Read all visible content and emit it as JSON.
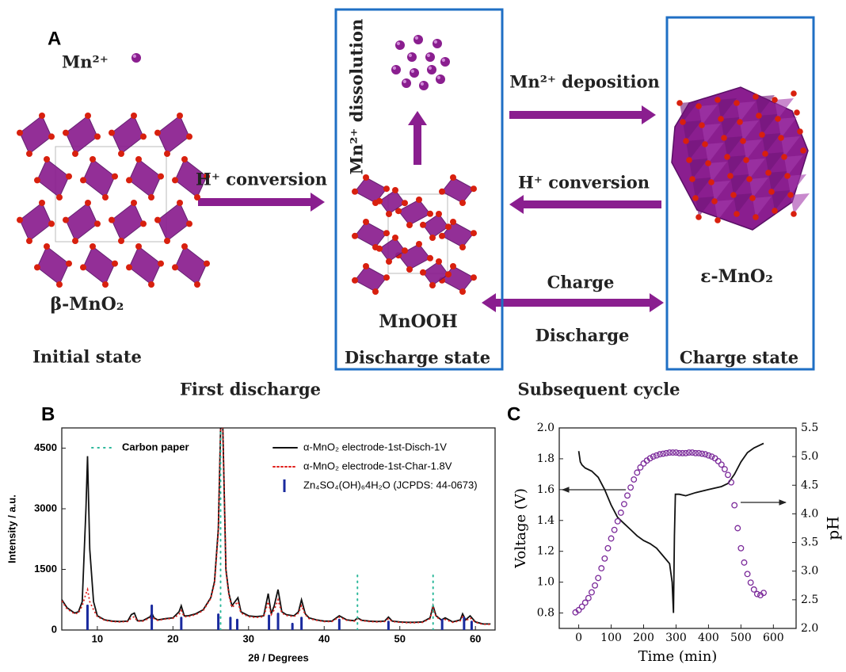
{
  "diagram": {
    "panel_label": "A",
    "ion_label": "Mn²⁺",
    "h_conversion_1": "H⁺ conversion",
    "dissolution": "Mn²⁺ dissolution",
    "deposition": "Mn²⁺ deposition",
    "h_conversion_2": "H⁺ conversion",
    "charge": "Charge",
    "discharge": "Discharge",
    "beta": "β-MnO₂",
    "mnooh": "MnOOH",
    "epsilon": "ε-MnO₂",
    "initial_state": "Initial state",
    "discharge_state": "Discharge state",
    "charge_state": "Charge state",
    "first_discharge": "First discharge",
    "subsequent_cycle": "Subsequent cycle"
  },
  "chart_data": [
    {
      "type": "line",
      "label": "B",
      "xlabel": "2θ / Degrees",
      "ylabel": "Intensity / a.u.",
      "xlim": [
        5.3,
        62.6
      ],
      "xticks": [
        10,
        20,
        30,
        40,
        50,
        60
      ],
      "ylim": [
        0,
        5000
      ],
      "yticks": [
        0,
        1500,
        3000,
        4500
      ],
      "legend": "upper right",
      "x": [
        5.3,
        6,
        7,
        7.5,
        8,
        8.5,
        8.7,
        9,
        9.5,
        10,
        11,
        12,
        13,
        14,
        14.5,
        14.9,
        15.3,
        16,
        17,
        17.2,
        17.5,
        18,
        19,
        20,
        20.8,
        21.1,
        21.5,
        22,
        23,
        24,
        25,
        25.5,
        26,
        26.3,
        26.6,
        27,
        27.4,
        27.8,
        28.2,
        28.6,
        29,
        30,
        31,
        32,
        32.6,
        33,
        33.4,
        33.9,
        34.4,
        35,
        36,
        36.6,
        37,
        37.5,
        38,
        39,
        40,
        41,
        42,
        43,
        44,
        44.4,
        45,
        46,
        47,
        48,
        48.5,
        49,
        50,
        51,
        52,
        53,
        54,
        54.4,
        54.8,
        55.5,
        56,
        57,
        58,
        58.3,
        58.7,
        59,
        59.3,
        60,
        61,
        62
      ],
      "series": [
        {
          "name": "α-MnO₂ electrode-1st-Disch-1V",
          "color": "#111111",
          "linestyle": "solid",
          "values": [
            750,
            550,
            420,
            450,
            700,
            3000,
            4300,
            2000,
            700,
            350,
            250,
            220,
            210,
            220,
            380,
            420,
            230,
            230,
            330,
            420,
            300,
            250,
            280,
            300,
            450,
            600,
            350,
            350,
            400,
            500,
            800,
            1200,
            2500,
            5000,
            5000,
            1500,
            900,
            600,
            700,
            800,
            450,
            350,
            330,
            350,
            900,
            400,
            600,
            1000,
            450,
            380,
            350,
            450,
            750,
            400,
            300,
            250,
            220,
            220,
            350,
            250,
            230,
            300,
            240,
            220,
            210,
            220,
            320,
            220,
            200,
            190,
            190,
            200,
            300,
            600,
            350,
            250,
            300,
            200,
            250,
            400,
            250,
            300,
            350,
            200,
            150,
            150
          ]
        },
        {
          "name": "α-MnO₂ electrode-1st-Char-1.8V",
          "color": "#e0201c",
          "linestyle": "dotted",
          "values": [
            720,
            520,
            400,
            420,
            600,
            900,
            1000,
            700,
            500,
            330,
            240,
            210,
            200,
            210,
            300,
            330,
            220,
            220,
            300,
            380,
            280,
            240,
            270,
            290,
            380,
            480,
            330,
            330,
            380,
            480,
            780,
            1150,
            2400,
            5000,
            5000,
            1450,
            850,
            560,
            620,
            700,
            420,
            330,
            310,
            330,
            700,
            380,
            500,
            750,
            420,
            360,
            330,
            420,
            600,
            380,
            280,
            240,
            210,
            210,
            320,
            240,
            220,
            280,
            230,
            210,
            200,
            210,
            280,
            210,
            190,
            180,
            180,
            190,
            280,
            550,
            330,
            240,
            260,
            190,
            230,
            330,
            230,
            260,
            300,
            190,
            140,
            140
          ]
        },
        {
          "name": "Zn₄SO₄(OH)₆4H₂O (JCPDS: 44-0673)",
          "color": "#1a2a9e",
          "linestyle": "stem",
          "x": [
            8.7,
            17.2,
            21.1,
            26,
            27.6,
            28.5,
            32.7,
            33.9,
            35.8,
            37,
            42,
            48.5,
            55.6,
            58.5,
            59.5
          ],
          "values": [
            600,
            600,
            300,
            380,
            300,
            250,
            350,
            400,
            150,
            300,
            250,
            200,
            250,
            300,
            200
          ]
        },
        {
          "name": "Carbon paper",
          "color": "#2bb89a",
          "linestyle": "vline",
          "legend": "upper left",
          "x": [
            26.3,
            44.4,
            54.4
          ],
          "values": [
            5000,
            1450,
            1450
          ]
        }
      ]
    },
    {
      "type": "line",
      "label": "C",
      "xlabel": "Time (min)",
      "ylabel": "Voltage (V)",
      "y2label": "pH",
      "xlim": [
        -60,
        670
      ],
      "xticks": [
        0,
        100,
        200,
        300,
        400,
        500,
        600
      ],
      "ylim": [
        0.7,
        2.0
      ],
      "yticks": [
        0.8,
        {
          "value": 1,
          "label": "1.0"
        },
        1.2,
        1.4,
        1.6,
        1.8,
        {
          "value": 2,
          "label": "2.0"
        }
      ],
      "y2lim": [
        2.0,
        5.5
      ],
      "y2ticks": [
        {
          "value": 2,
          "label": "2.0"
        },
        2.5,
        {
          "value": 3,
          "label": "3.0"
        },
        3.5,
        {
          "value": 4,
          "label": "4.0"
        },
        4.5,
        {
          "value": 5,
          "label": "5.0"
        },
        5.5
      ],
      "series": [
        {
          "color": "#111111",
          "linestyle": "solid",
          "x": [
            0,
            5,
            10,
            20,
            40,
            60,
            80,
            100,
            120,
            140,
            160,
            180,
            200,
            220,
            240,
            260,
            280,
            288,
            292,
            295,
            298,
            310,
            330,
            360,
            400,
            440,
            460,
            480,
            500,
            520,
            540,
            560,
            570
          ],
          "values": [
            1.85,
            1.78,
            1.76,
            1.74,
            1.72,
            1.68,
            1.6,
            1.5,
            1.42,
            1.38,
            1.34,
            1.3,
            1.27,
            1.25,
            1.22,
            1.17,
            1.12,
            1.0,
            0.8,
            1.3,
            1.57,
            1.57,
            1.56,
            1.58,
            1.6,
            1.62,
            1.64,
            1.7,
            1.78,
            1.84,
            1.87,
            1.89,
            1.9
          ]
        },
        {
          "color": "#7b2a9a",
          "linestyle": "marker",
          "axis": "y2",
          "x": [
            -10,
            0,
            10,
            20,
            30,
            40,
            50,
            60,
            70,
            80,
            90,
            100,
            110,
            120,
            130,
            140,
            150,
            160,
            170,
            180,
            190,
            200,
            210,
            220,
            230,
            240,
            250,
            260,
            270,
            280,
            290,
            300,
            310,
            320,
            330,
            340,
            350,
            360,
            370,
            380,
            390,
            400,
            410,
            420,
            430,
            440,
            450,
            460,
            470,
            480,
            490,
            500,
            510,
            520,
            530,
            540,
            550,
            560,
            570
          ],
          "values": [
            2.28,
            2.32,
            2.38,
            2.45,
            2.53,
            2.63,
            2.75,
            2.88,
            3.05,
            3.22,
            3.4,
            3.57,
            3.72,
            3.87,
            4.02,
            4.17,
            4.32,
            4.46,
            4.6,
            4.72,
            4.81,
            4.88,
            4.93,
            4.97,
            5.0,
            5.02,
            5.04,
            5.05,
            5.06,
            5.07,
            5.07,
            5.07,
            5.06,
            5.06,
            5.06,
            5.07,
            5.07,
            5.06,
            5.06,
            5.05,
            5.04,
            5.02,
            5.0,
            4.97,
            4.92,
            4.86,
            4.78,
            4.68,
            4.55,
            4.15,
            3.75,
            3.4,
            3.15,
            2.95,
            2.8,
            2.68,
            2.6,
            2.58,
            2.62
          ]
        }
      ]
    }
  ]
}
